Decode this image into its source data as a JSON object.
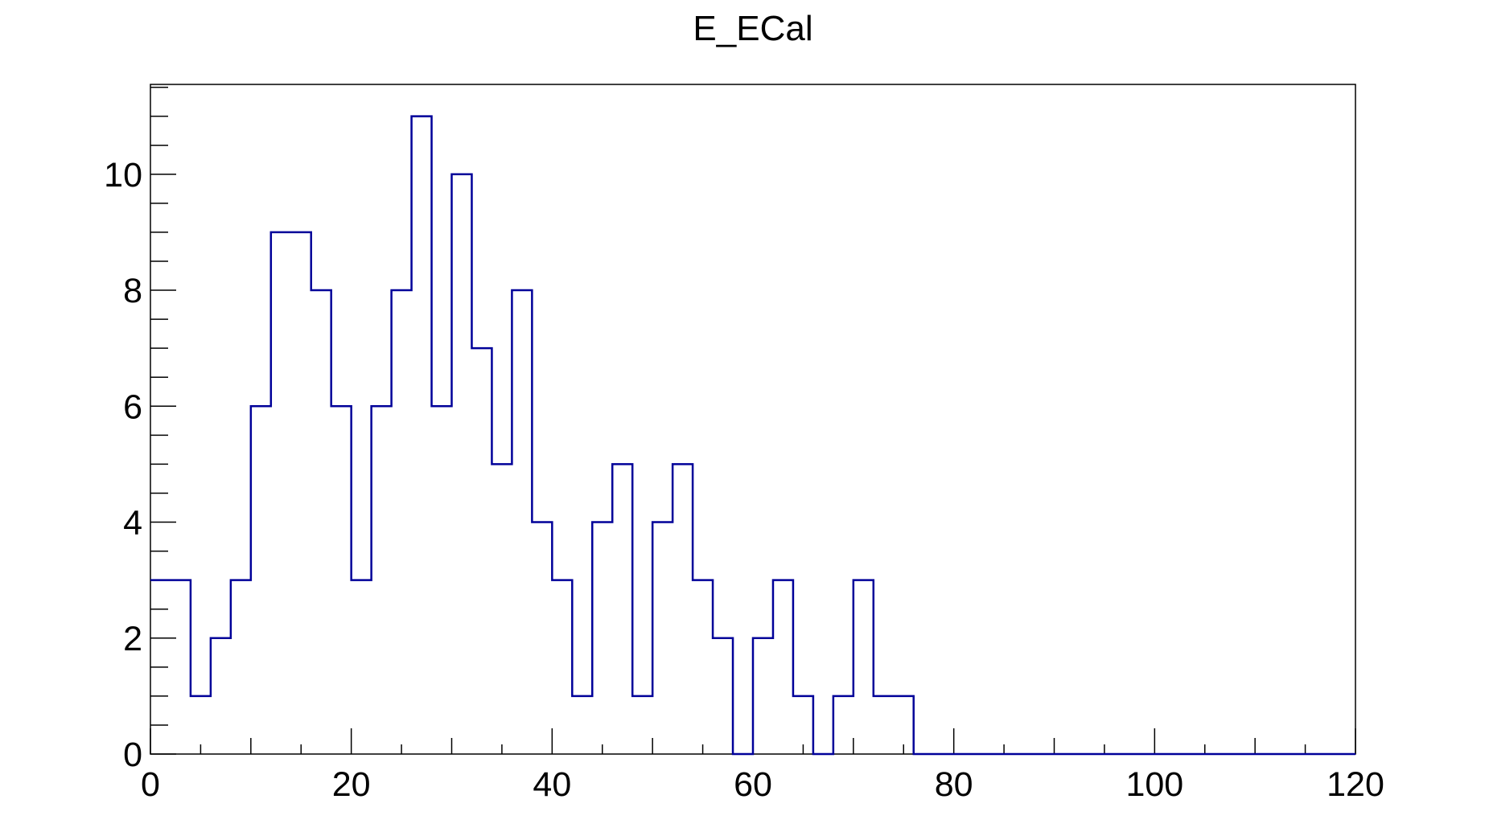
{
  "chart_data": {
    "type": "histogram",
    "title": "E_ECal",
    "xlabel": "",
    "ylabel": "",
    "xlim": [
      0,
      120
    ],
    "ylim": [
      0,
      11.55
    ],
    "bin_width": 2,
    "bin_edges_start": 0,
    "values": [
      3,
      3,
      1,
      2,
      3,
      6,
      9,
      9,
      8,
      6,
      3,
      6,
      8,
      11,
      6,
      10,
      7,
      5,
      8,
      4,
      3,
      1,
      4,
      5,
      1,
      4,
      5,
      3,
      2,
      0,
      2,
      3,
      1,
      0,
      1,
      3,
      1,
      1,
      0,
      0,
      0,
      0,
      0,
      0,
      0,
      0,
      0,
      0,
      0,
      0,
      0,
      0,
      0,
      0,
      0,
      0,
      0,
      0,
      0,
      0
    ],
    "x_major_ticks": [
      0,
      20,
      40,
      60,
      80,
      100,
      120
    ],
    "x_tick_labels": [
      "0",
      "20",
      "40",
      "60",
      "80",
      "100",
      "120"
    ],
    "y_major_ticks": [
      0,
      2,
      4,
      6,
      8,
      10
    ],
    "y_tick_labels": [
      "0",
      "2",
      "4",
      "6",
      "8",
      "10"
    ],
    "grid": false,
    "line_color": "#000099",
    "axis_color": "#000000"
  }
}
